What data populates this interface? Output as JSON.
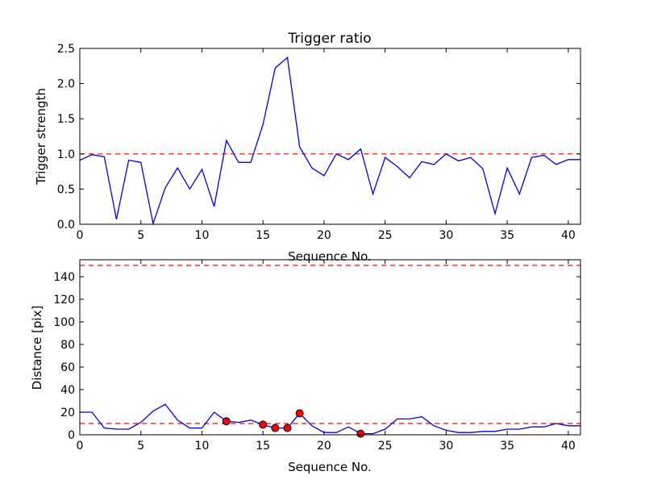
{
  "chart_data": [
    {
      "type": "line",
      "title": "Trigger ratio",
      "xlabel": "Sequence No.",
      "ylabel": "Trigger strength",
      "xlim": [
        0,
        41
      ],
      "ylim": [
        0,
        2.5
      ],
      "xticks": [
        0,
        5,
        10,
        15,
        20,
        25,
        30,
        35,
        40
      ],
      "xtick_labels": [
        "0",
        "5",
        "10",
        "15",
        "20",
        "25",
        "30",
        "35",
        "40"
      ],
      "yticks": [
        0,
        0.5,
        1.0,
        1.5,
        2.0,
        2.5
      ],
      "ytick_labels": [
        "0.0",
        "0.5",
        "1.0",
        "1.5",
        "2.0",
        "2.5"
      ],
      "x": [
        0,
        1,
        2,
        3,
        4,
        5,
        6,
        7,
        8,
        9,
        10,
        11,
        12,
        13,
        14,
        15,
        16,
        17,
        18,
        19,
        20,
        21,
        22,
        23,
        24,
        25,
        26,
        27,
        28,
        29,
        30,
        31,
        32,
        33,
        34,
        35,
        36,
        37,
        38,
        39,
        40,
        41
      ],
      "series": [
        {
          "values": [
            0.91,
            0.99,
            0.96,
            0.07,
            0.91,
            0.88,
            0.01,
            0.52,
            0.8,
            0.5,
            0.78,
            0.25,
            1.19,
            0.88,
            0.88,
            1.42,
            2.22,
            2.37,
            1.1,
            0.8,
            0.69,
            1.0,
            0.92,
            1.07,
            0.43,
            0.95,
            0.82,
            0.66,
            0.89,
            0.85,
            1.0,
            0.9,
            0.95,
            0.79,
            0.15,
            0.8,
            0.43,
            0.95,
            0.98,
            0.85,
            0.92,
            0.92
          ],
          "color": "#0000ff"
        }
      ],
      "reference_lines": [
        {
          "y": 1.0,
          "color": "#ff0000",
          "style": "dashed"
        }
      ],
      "grid": false
    },
    {
      "type": "line",
      "title": "",
      "xlabel": "Sequence No.",
      "ylabel": "Distance [pix]",
      "xlim": [
        0,
        41
      ],
      "ylim": [
        0,
        155
      ],
      "xticks": [
        0,
        5,
        10,
        15,
        20,
        25,
        30,
        35,
        40
      ],
      "xtick_labels": [
        "0",
        "5",
        "10",
        "15",
        "20",
        "25",
        "30",
        "35",
        "40"
      ],
      "yticks": [
        0,
        20,
        40,
        60,
        80,
        100,
        120,
        140
      ],
      "ytick_labels": [
        "0",
        "20",
        "40",
        "60",
        "80",
        "100",
        "120",
        "140"
      ],
      "x": [
        0,
        1,
        2,
        3,
        4,
        5,
        6,
        7,
        8,
        9,
        10,
        11,
        12,
        13,
        14,
        15,
        16,
        17,
        18,
        19,
        20,
        21,
        22,
        23,
        24,
        25,
        26,
        27,
        28,
        29,
        30,
        31,
        32,
        33,
        34,
        35,
        36,
        37,
        38,
        39,
        40,
        41
      ],
      "series": [
        {
          "values": [
            20,
            20,
            6,
            5,
            5,
            11,
            21,
            27,
            13,
            6,
            6,
            20,
            12,
            11,
            13,
            9,
            6,
            6,
            19,
            8,
            2,
            2,
            7,
            1,
            1,
            5,
            14,
            14,
            16,
            8,
            4,
            2,
            2,
            3,
            3,
            5,
            5,
            7,
            7,
            10,
            8,
            8
          ],
          "color": "#0000ff"
        }
      ],
      "markers": {
        "color": "#ff0000",
        "points": [
          {
            "x": 12,
            "y": 12
          },
          {
            "x": 15,
            "y": 9
          },
          {
            "x": 16,
            "y": 6
          },
          {
            "x": 17,
            "y": 6
          },
          {
            "x": 18,
            "y": 19
          },
          {
            "x": 23,
            "y": 1
          }
        ]
      },
      "reference_lines": [
        {
          "y": 10,
          "color": "#ff0000",
          "style": "dashed"
        },
        {
          "y": 150,
          "color": "#ff0000",
          "style": "dashed"
        }
      ],
      "grid": false
    }
  ]
}
